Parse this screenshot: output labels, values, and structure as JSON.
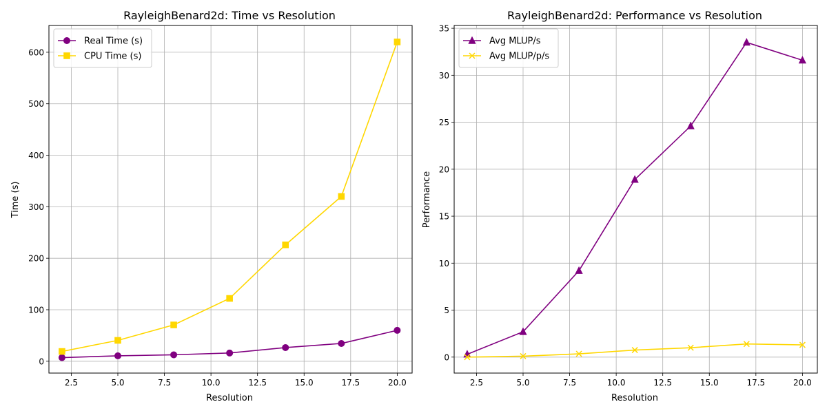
{
  "chart_data": [
    {
      "type": "line",
      "title": "RayleighBenard2d: Time vs Resolution",
      "xlabel": "Resolution",
      "ylabel": "Time (s)",
      "xlim": [
        1.3,
        20.8
      ],
      "ylim": [
        -23,
        652
      ],
      "xticks": [
        2.5,
        5.0,
        7.5,
        10.0,
        12.5,
        15.0,
        17.5,
        20.0
      ],
      "xtick_labels": [
        "2.5",
        "5.0",
        "7.5",
        "10.0",
        "12.5",
        "15.0",
        "17.5",
        "20.0"
      ],
      "yticks": [
        0,
        100,
        200,
        300,
        400,
        500,
        600
      ],
      "ytick_labels": [
        "0",
        "100",
        "200",
        "300",
        "400",
        "500",
        "600"
      ],
      "grid": true,
      "legend_position": "top-left",
      "x": [
        2,
        5,
        8,
        11,
        14,
        17,
        20
      ],
      "series": [
        {
          "name": "Real Time (s)",
          "values": [
            7,
            10.5,
            12.5,
            16,
            26.5,
            34.5,
            60
          ],
          "color": "#800080",
          "marker": "circle"
        },
        {
          "name": "CPU Time (s)",
          "values": [
            19,
            40.5,
            70.5,
            122,
            226,
            320,
            620
          ],
          "color": "#FFD700",
          "marker": "square"
        }
      ]
    },
    {
      "type": "line",
      "title": "RayleighBenard2d: Performance vs Resolution",
      "xlabel": "Resolution",
      "ylabel": "Performance",
      "xlim": [
        1.3,
        20.8
      ],
      "ylim": [
        -1.7,
        35.3
      ],
      "xticks": [
        2.5,
        5.0,
        7.5,
        10.0,
        12.5,
        15.0,
        17.5,
        20.0
      ],
      "xtick_labels": [
        "2.5",
        "5.0",
        "7.5",
        "10.0",
        "12.5",
        "15.0",
        "17.5",
        "20.0"
      ],
      "yticks": [
        0,
        5,
        10,
        15,
        20,
        25,
        30,
        35
      ],
      "ytick_labels": [
        "0",
        "5",
        "10",
        "15",
        "20",
        "25",
        "30",
        "35"
      ],
      "grid": true,
      "legend_position": "top-left",
      "x": [
        2,
        5,
        8,
        11,
        14,
        17,
        20
      ],
      "series": [
        {
          "name": "Avg MLUP/s",
          "values": [
            0.3,
            2.7,
            9.2,
            18.9,
            24.6,
            33.5,
            31.6
          ],
          "color": "#800080",
          "marker": "triangle"
        },
        {
          "name": "Avg MLUP/p/s",
          "values": [
            0.0,
            0.1,
            0.35,
            0.75,
            1.0,
            1.4,
            1.3
          ],
          "color": "#FFD700",
          "marker": "x"
        }
      ]
    }
  ]
}
